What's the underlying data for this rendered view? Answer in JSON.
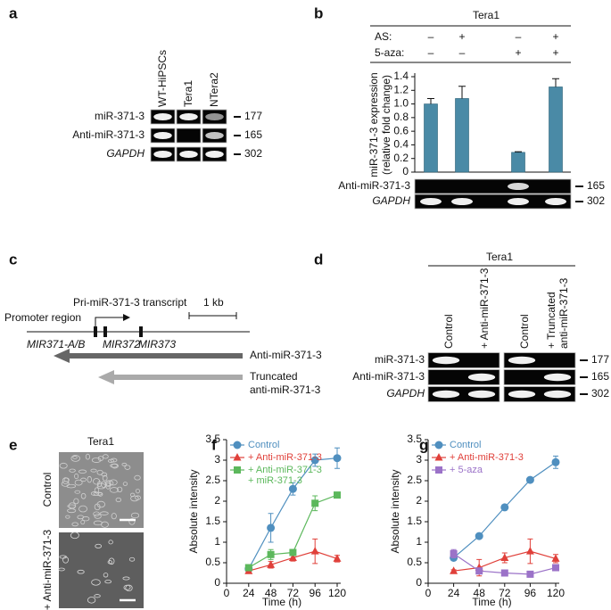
{
  "panel_a": {
    "label": "a",
    "lanes": [
      "WT-HiPSCs",
      "Tera1",
      "NTera2"
    ],
    "rows": [
      "miR-371-3",
      "Anti-miR-371-3",
      "GAPDH"
    ],
    "sizes": [
      "177",
      "165",
      "302"
    ]
  },
  "panel_c": {
    "label": "c",
    "transcript": "Pri-miR-371-3 transcript",
    "scale": "1 kb",
    "promoter": "Promoter region",
    "genes": [
      "MIR371-A/B",
      "MIR372",
      "MIR373"
    ],
    "arrow1": "Anti-miR-371-3",
    "arrow2": [
      "Truncated",
      "anti-miR-371-3"
    ]
  },
  "panel_d": {
    "label": "d",
    "header": "Tera1",
    "lanes": [
      "Control",
      "+ Anti-miR-371-3",
      "Control",
      [
        "+ Truncated",
        "anti-miR-371-3"
      ]
    ],
    "rows": [
      "miR-371-3",
      "Anti-miR-371-3",
      "GAPDH"
    ],
    "sizes": [
      "177",
      "165",
      "302"
    ]
  },
  "panel_e": {
    "label": "e",
    "header": "Tera1",
    "rows": [
      "Control",
      "+ Anti-miR-371-3"
    ]
  },
  "chart_data": [
    {
      "type": "bar",
      "panel_label": "b",
      "header": "Tera1",
      "conditions": [
        {
          "label": "AS:",
          "signs": [
            "–",
            "+",
            "–",
            "+"
          ]
        },
        {
          "label": "5-aza:",
          "signs": [
            "–",
            "–",
            "+",
            "+"
          ]
        }
      ],
      "ylabel_lines": [
        "miR-371-3 expression",
        "(relative fold change)"
      ],
      "categories": [
        null,
        null,
        null,
        null
      ],
      "values": [
        1.0,
        1.08,
        0.29,
        1.25
      ],
      "errors": [
        0.08,
        0.18,
        0.01,
        0.12
      ],
      "color": "#4a8aa6",
      "ylim": [
        0,
        1.4
      ],
      "yticks": [
        0,
        0.2,
        0.4,
        0.6,
        0.8,
        {
          "value": 1,
          "label": "1.0"
        },
        1.2,
        1.4
      ],
      "gel_rows": [
        "Anti-miR-371-3",
        "GAPDH"
      ],
      "gel_sizes": [
        "165",
        "302"
      ]
    },
    {
      "type": "line",
      "panel_label": "f",
      "xlabel": "Time (h)",
      "ylabel": "Absolute intensity",
      "x": [
        24,
        48,
        72,
        96,
        120
      ],
      "xlim": [
        0,
        120
      ],
      "xticks": [
        0,
        24,
        48,
        72,
        96,
        120
      ],
      "ylim": [
        0,
        3.5
      ],
      "yticks": [
        0,
        0.5,
        1,
        1.5,
        2,
        2.5,
        3,
        3.5
      ],
      "series": [
        {
          "name": "Control",
          "color": "#4f8fbf",
          "marker": "circle",
          "values": [
            0.35,
            1.35,
            2.3,
            3.0,
            3.05
          ],
          "errors": [
            0.05,
            0.35,
            0.15,
            0.15,
            0.25
          ]
        },
        {
          "name": "+ Anti-miR-371-3",
          "color": "#e0403a",
          "marker": "triangle",
          "values": [
            0.3,
            0.45,
            0.62,
            0.78,
            0.6
          ],
          "errors": [
            0.03,
            0.08,
            0.08,
            0.3,
            0.08
          ]
        },
        {
          "name": "+ Anti-miR-371-3\n+ miR-371-3",
          "color": "#5cb85c",
          "marker": "square",
          "values": [
            0.38,
            0.7,
            0.75,
            1.95,
            2.15
          ],
          "errors": [
            0.05,
            0.12,
            0.05,
            0.18,
            0.05
          ]
        }
      ]
    },
    {
      "type": "line",
      "panel_label": "g",
      "xlabel": "Time (h)",
      "ylabel": "Absolute intensity",
      "x": [
        24,
        48,
        72,
        96,
        120
      ],
      "xlim": [
        0,
        120
      ],
      "xticks": [
        0,
        24,
        48,
        72,
        96,
        120
      ],
      "ylim": [
        0,
        3.5
      ],
      "yticks": [
        0,
        0.5,
        1,
        1.5,
        2,
        2.5,
        3,
        3.5
      ],
      "series": [
        {
          "name": "Control",
          "color": "#4f8fbf",
          "marker": "circle",
          "values": [
            0.62,
            1.15,
            1.85,
            2.52,
            2.95
          ],
          "errors": [
            0.05,
            0.05,
            0.05,
            0.05,
            0.15
          ]
        },
        {
          "name": "+ Anti-miR-371-3",
          "color": "#e0403a",
          "marker": "triangle",
          "values": [
            0.3,
            0.38,
            0.62,
            0.78,
            0.6
          ],
          "errors": [
            0.03,
            0.2,
            0.12,
            0.3,
            0.1
          ]
        },
        {
          "name": "+ 5-aza",
          "color": "#9b72c8",
          "marker": "square",
          "values": [
            0.72,
            0.3,
            0.25,
            0.22,
            0.38
          ],
          "errors": [
            0.1,
            0.05,
            0.03,
            0.03,
            0.05
          ]
        }
      ]
    }
  ]
}
